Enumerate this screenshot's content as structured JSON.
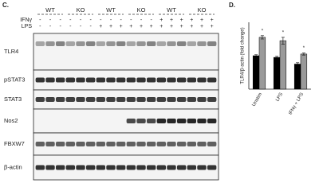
{
  "panel_c": {
    "label": "C.",
    "groups": [
      "WT",
      "KO",
      "WT",
      "KO",
      "WT",
      "KO"
    ],
    "treatments": [
      {
        "name": "IFNγ",
        "signs": [
          "-",
          "-",
          "-",
          "-",
          "-",
          "-",
          "-",
          "-",
          "-",
          "-",
          "-",
          "-",
          "+",
          "+",
          "+",
          "+",
          "+",
          "+"
        ]
      },
      {
        "name": "LPS",
        "signs": [
          "-",
          "-",
          "-",
          "-",
          "-",
          "-",
          "+",
          "+",
          "+",
          "+",
          "+",
          "+",
          "+",
          "+",
          "+",
          "+",
          "+",
          "+"
        ]
      }
    ],
    "blots": [
      "TLR4",
      "pSTAT3",
      "STAT3",
      "Nos2",
      "FBXW7",
      "β-actin"
    ]
  },
  "chart_data": {
    "type": "bar",
    "panel_label": "D.",
    "ylabel": "TLR4/β-actin (fold change)",
    "categories": [
      "Unstim",
      "LPS",
      "IFNγ + LPS"
    ],
    "series": [
      {
        "color": "#000000",
        "values": [
          1.0,
          0.95,
          0.75
        ],
        "errors": [
          0.03,
          0.03,
          0.04
        ]
      },
      {
        "color": "#9a9a9a",
        "values": [
          1.55,
          1.45,
          1.05
        ],
        "errors": [
          0.05,
          0.1,
          0.03
        ],
        "annotations": [
          "*",
          "*",
          "*"
        ]
      }
    ],
    "ylim": [
      0,
      2
    ]
  }
}
